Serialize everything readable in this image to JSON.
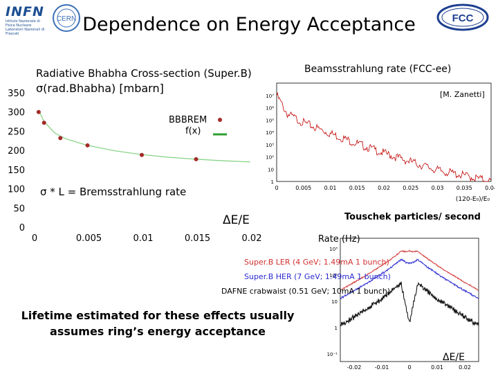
{
  "slide": {
    "title": "Dependence on Energy Acceptance",
    "logos": {
      "infn_text": "INFN",
      "infn_sub": "Istituto Nazionale di Fisica Nucleare",
      "infn_lab": "Laboratori Nazionali di Frascati",
      "cern_text": "CERN",
      "fcc_text": "FCC"
    },
    "left_plot_title": "Radiative Bhabha Cross-section (Super.B)",
    "left_ylabel": "σ(rad.Bhabha) [mbarn]",
    "legend_label_1": "BBBREM",
    "legend_label_2": "f(x)",
    "annotation": "σ * L = Bremsstrahlung rate",
    "left_xlabel": "ΔE/E",
    "right_plot_title": "Beamsstrahlung rate (FCC-ee)",
    "credit": "[M. Zanetti]",
    "touschek_title": "Touschek particles/ second",
    "rate_label": "Rate (Hz)",
    "series_labels": [
      "Super.B LER (4 GeV; 1.49mA 1 bunch)",
      "Super.B HER (7 GeV; 1.49mA 1 bunch)",
      "DAFNE crabwaist (0.51 GeV; 10mA 1 bunch)"
    ],
    "bottom_xlabel": "ΔE/E",
    "conclusion_line1": "Lifetime estimated for these effects usually",
    "conclusion_line2": "assumes ring’s  energy acceptance"
  },
  "chart_data": [
    {
      "type": "scatter",
      "title": "Radiative Bhabha Cross-section (Super.B)",
      "xlabel": "ΔE/E",
      "ylabel": "σ(rad.Bhabha) [mbarn]",
      "xlim": [
        0,
        0.02
      ],
      "ylim": [
        0,
        350
      ],
      "x_ticks": [
        "0",
        "0.005",
        "0.01",
        "0.015",
        "0.02"
      ],
      "y_ticks": [
        "0",
        "50",
        "100",
        "150",
        "200",
        "250",
        "300",
        "350"
      ],
      "series": [
        {
          "name": "BBBREM",
          "x": [
            0.0005,
            0.001,
            0.0025,
            0.005,
            0.01,
            0.015
          ],
          "y": [
            300,
            272,
            232,
            213,
            188,
            177
          ],
          "color": "#a52a2a"
        },
        {
          "name": "f(x)",
          "x": [
            0.0005,
            0.001,
            0.002,
            0.003,
            0.005,
            0.0075,
            0.01,
            0.0125,
            0.015,
            0.0175,
            0.02
          ],
          "y": [
            305,
            275,
            245,
            230,
            213,
            199,
            189,
            182,
            177,
            173,
            170
          ],
          "color": "#2e9e2e"
        }
      ]
    },
    {
      "type": "line",
      "title": "Beamsstrahlung rate (FCC-ee)",
      "xlabel": "(120-E₀)/E₀",
      "yscale": "log",
      "xlim": [
        0,
        0.04
      ],
      "ylim": [
        1,
        100000000
      ],
      "x_ticks": [
        "0",
        "0.005",
        "0.01",
        "0.015",
        "0.02",
        "0.025",
        "0.03",
        "0.035",
        "0.04"
      ],
      "y_ticks": [
        "1",
        "10",
        "10²",
        "10³",
        "10⁴",
        "10⁵",
        "10⁶",
        "10⁷"
      ],
      "series": [
        {
          "name": "beamstrahlung",
          "x": [
            0.0,
            0.002,
            0.005,
            0.01,
            0.015,
            0.02,
            0.025,
            0.03,
            0.035,
            0.04
          ],
          "y": [
            10000000,
            300000,
            60000,
            8000,
            1200,
            200,
            40,
            8,
            3,
            1
          ],
          "color": "#c00000"
        }
      ]
    },
    {
      "type": "line",
      "title": "Touschek particles/ second",
      "ylabel": "Rate (Hz)",
      "xlabel": "ΔE/E",
      "yscale": "log",
      "xlim": [
        -0.025,
        0.025
      ],
      "x_ticks": [
        "-0.02",
        "-0.01",
        "0",
        "0.01",
        "0.02"
      ],
      "y_ticks": [
        "10³",
        "10²",
        "10",
        "1",
        "10⁻¹"
      ],
      "series": [
        {
          "name": "Super.B LER (4 GeV; 1.49mA 1 bunch)",
          "color": "#d03030"
        },
        {
          "name": "Super.B HER (7 GeV; 1.49mA 1 bunch)",
          "color": "#2a2ad0"
        },
        {
          "name": "DAFNE crabwaist (0.51 GeV; 10mA 1 bunch)",
          "color": "#000000"
        }
      ]
    }
  ]
}
